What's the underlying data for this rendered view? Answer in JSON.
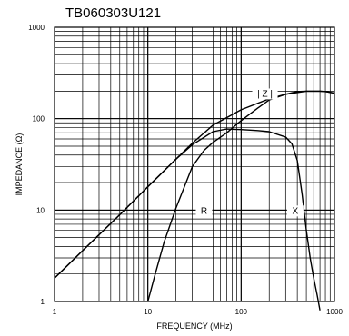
{
  "chart_data": {
    "type": "line",
    "title": "TB060303U121",
    "xlabel": "FREQUENCY (MHz)",
    "ylabel": "IMPEDANCE (Ω)",
    "xscale": "log",
    "yscale": "log",
    "xlim": [
      1,
      1000
    ],
    "ylim": [
      1,
      1000
    ],
    "grid": true,
    "x_ticks": [
      "1",
      "10",
      "100",
      "1000"
    ],
    "y_ticks": [
      "1",
      "10",
      "100",
      "1000"
    ],
    "series": [
      {
        "name": "| Z |",
        "x": [
          1,
          2,
          5,
          10,
          20,
          30,
          50,
          100,
          200,
          300,
          500,
          700,
          800,
          1000
        ],
        "y": [
          1.8,
          3.6,
          8.9,
          18,
          36,
          54,
          85,
          125,
          165,
          185,
          200,
          200,
          198,
          190
        ]
      },
      {
        "name": "R",
        "x": [
          10,
          12,
          15,
          20,
          30,
          40,
          50,
          70,
          100,
          150,
          200,
          300,
          400,
          500,
          700,
          800,
          1000
        ],
        "y": [
          1,
          2,
          4.5,
          10.5,
          30,
          45,
          55,
          70,
          95,
          130,
          160,
          185,
          198,
          200,
          200,
          198,
          190
        ]
      },
      {
        "name": "X",
        "x": [
          1,
          2,
          5,
          10,
          20,
          30,
          50,
          70,
          100,
          150,
          200,
          300,
          350,
          400,
          450,
          500,
          550,
          600,
          650,
          700
        ],
        "y": [
          1.8,
          3.6,
          8.9,
          18,
          36,
          52,
          72,
          77,
          76,
          74,
          72,
          63,
          53,
          35,
          15,
          6,
          3,
          1.8,
          1.2,
          0.8
        ]
      }
    ]
  }
}
